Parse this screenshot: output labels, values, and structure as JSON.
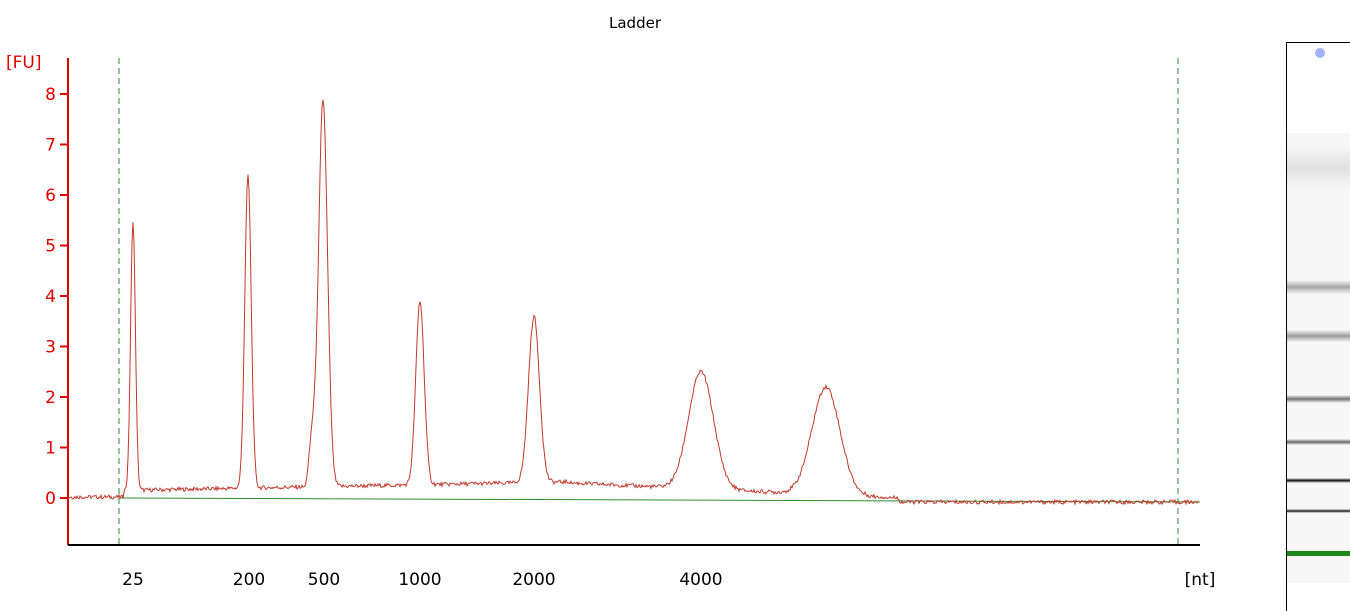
{
  "chart_data": {
    "type": "line",
    "title": "Ladder",
    "ylabel": "[FU]",
    "xlabel": "[nt]",
    "ylim": [
      -0.9,
      8.7
    ],
    "yticks": [
      0,
      1,
      2,
      3,
      4,
      5,
      6,
      7,
      8
    ],
    "xtick_labels": [
      "25",
      "200",
      "500",
      "1000",
      "2000",
      "4000"
    ],
    "grid": false,
    "series": [
      {
        "color": "#c0392b",
        "peaks": [
          {
            "size": "25",
            "height": 5.5
          },
          {
            "size": "200",
            "height": 6.4
          },
          {
            "size": "500",
            "height": 7.9
          },
          {
            "size": "1000",
            "height": 3.9
          },
          {
            "size": "2000",
            "height": 3.6
          },
          {
            "size": "4000",
            "height": 2.5
          },
          {
            "height": 2.2
          }
        ]
      }
    ],
    "baseline_color": "#2e8b2e",
    "marker_lines_color": "#2e8b2e"
  },
  "gel": {
    "bands": [
      {
        "intensity": 0.12
      },
      {
        "intensity": 0.35
      },
      {
        "intensity": 0.4
      },
      {
        "intensity": 0.55
      },
      {
        "intensity": 0.6
      },
      {
        "intensity": 0.95
      },
      {
        "intensity": 0.9
      },
      {
        "intensity": 1.0,
        "color": "#1a8a1a"
      }
    ],
    "marker_color": "#9fb3f5"
  }
}
